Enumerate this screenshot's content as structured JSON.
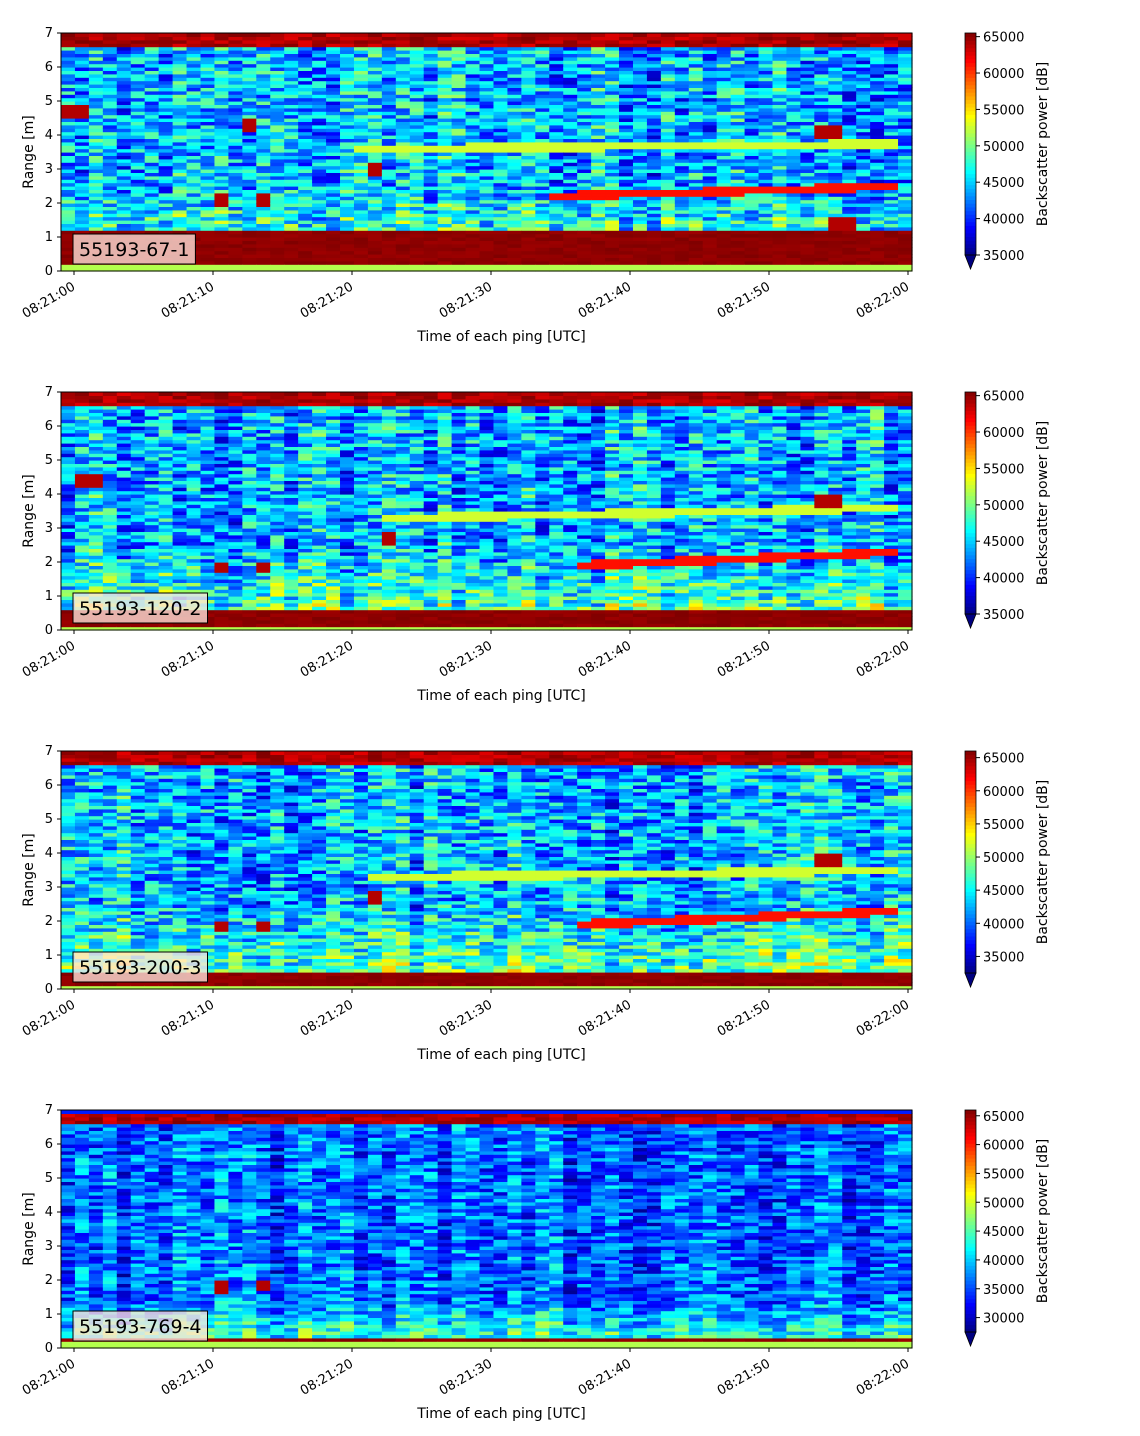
{
  "chart_data": [
    {
      "type": "heatmap",
      "label": "55193-67-1",
      "xlabel": "Time of each ping [UTC]",
      "ylabel": "Range [m]",
      "x_ticks": [
        "08:21:00",
        "08:21:10",
        "08:21:20",
        "08:21:30",
        "08:21:40",
        "08:21:50",
        "08:22:00"
      ],
      "xlim": [
        "08:21:00",
        "08:22:00"
      ],
      "y_ticks": [
        0,
        1,
        2,
        3,
        4,
        5,
        6,
        7
      ],
      "ylim": [
        0,
        7
      ],
      "colorbar": {
        "label": "Backscatter power [dB]",
        "ticks": [
          35000,
          40000,
          45000,
          50000,
          55000,
          60000,
          65000
        ],
        "range": [
          35000,
          65500
        ],
        "extend": "min"
      },
      "colormap": "jet",
      "features": {
        "bottom_band": [
          0.2,
          1.2
        ],
        "top_band": [
          6.6,
          7.0
        ],
        "strong_echo_track": {
          "x": [
            "08:21:34",
            "08:21:59"
          ],
          "y": [
            2.2,
            2.5
          ]
        },
        "weak_echo_track": {
          "x": [
            "08:21:21",
            "08:21:59"
          ],
          "y": [
            3.6,
            3.75
          ]
        },
        "echo_spots": [
          {
            "t": "08:21:11",
            "y": 2.1
          },
          {
            "t": "08:21:14",
            "y": 2.1
          },
          {
            "t": "08:21:13",
            "y": 4.3
          },
          {
            "t": "08:21:22",
            "y": 3.0
          },
          {
            "t": "08:21:01",
            "y": 4.7
          },
          {
            "t": "08:21:54",
            "y": 4.1
          },
          {
            "t": "08:21:55",
            "y": 1.4
          }
        ]
      }
    },
    {
      "type": "heatmap",
      "label": "55193-120-2",
      "xlabel": "Time of each ping [UTC]",
      "ylabel": "Range [m]",
      "x_ticks": [
        "08:21:00",
        "08:21:10",
        "08:21:20",
        "08:21:30",
        "08:21:40",
        "08:21:50",
        "08:22:00"
      ],
      "xlim": [
        "08:21:00",
        "08:22:00"
      ],
      "y_ticks": [
        0,
        1,
        2,
        3,
        4,
        5,
        6,
        7
      ],
      "ylim": [
        0,
        7
      ],
      "colorbar": {
        "label": "Backscatter power [dB]",
        "ticks": [
          35000,
          40000,
          45000,
          50000,
          55000,
          60000,
          65000
        ],
        "range": [
          35000,
          65500
        ],
        "extend": "min"
      },
      "colormap": "jet",
      "features": {
        "bottom_band": [
          0.1,
          0.6
        ],
        "top_band": [
          6.6,
          7.0
        ],
        "strong_echo_track": {
          "x": [
            "08:21:36",
            "08:21:59"
          ],
          "y": [
            1.9,
            2.3
          ]
        },
        "weak_echo_track": {
          "x": [
            "08:21:23",
            "08:21:59"
          ],
          "y": [
            3.3,
            3.6
          ]
        },
        "echo_spots": [
          {
            "t": "08:21:02",
            "y": 4.4
          },
          {
            "t": "08:21:11",
            "y": 1.85
          },
          {
            "t": "08:21:14",
            "y": 1.85
          },
          {
            "t": "08:21:23",
            "y": 2.7
          },
          {
            "t": "08:21:54",
            "y": 3.8
          }
        ]
      }
    },
    {
      "type": "heatmap",
      "label": "55193-200-3",
      "xlabel": "Time of each ping [UTC]",
      "ylabel": "Range [m]",
      "x_ticks": [
        "08:21:00",
        "08:21:10",
        "08:21:20",
        "08:21:30",
        "08:21:40",
        "08:21:50",
        "08:22:00"
      ],
      "xlim": [
        "08:21:00",
        "08:22:00"
      ],
      "y_ticks": [
        0,
        1,
        2,
        3,
        4,
        5,
        6,
        7
      ],
      "ylim": [
        0,
        7
      ],
      "colorbar": {
        "label": "Backscatter power [dB]",
        "ticks": [
          35000,
          40000,
          45000,
          50000,
          55000,
          60000,
          65000
        ],
        "range": [
          32500,
          66000
        ],
        "extend": "min"
      },
      "colormap": "jet",
      "features": {
        "bottom_band": [
          0.1,
          0.5
        ],
        "top_band": [
          6.6,
          7.0
        ],
        "strong_echo_track": {
          "x": [
            "08:21:36",
            "08:21:59"
          ],
          "y": [
            1.9,
            2.3
          ]
        },
        "weak_echo_track": {
          "x": [
            "08:21:22",
            "08:21:59"
          ],
          "y": [
            3.3,
            3.5
          ]
        },
        "echo_spots": [
          {
            "t": "08:21:11",
            "y": 1.85
          },
          {
            "t": "08:21:14",
            "y": 1.85
          },
          {
            "t": "08:21:22",
            "y": 2.7
          },
          {
            "t": "08:21:54",
            "y": 3.8
          }
        ]
      }
    },
    {
      "type": "heatmap",
      "label": "55193-769-4",
      "xlabel": "Time of each ping [UTC]",
      "ylabel": "Range [m]",
      "x_ticks": [
        "08:21:00",
        "08:21:10",
        "08:21:20",
        "08:21:30",
        "08:21:40",
        "08:21:50",
        "08:22:00"
      ],
      "xlim": [
        "08:21:00",
        "08:22:00"
      ],
      "y_ticks": [
        0,
        1,
        2,
        3,
        4,
        5,
        6,
        7
      ],
      "ylim": [
        0,
        7
      ],
      "colorbar": {
        "label": "Backscatter power [dB]",
        "ticks": [
          30000,
          35000,
          40000,
          45000,
          50000,
          55000,
          60000,
          65000
        ],
        "range": [
          27500,
          66000
        ],
        "extend": "min"
      },
      "colormap": "jet",
      "features": {
        "bottom_band": [
          0.2,
          0.35
        ],
        "top_band": [
          6.6,
          6.9
        ],
        "strong_echo_track": null,
        "weak_echo_track": null,
        "echo_spots": [
          {
            "t": "08:21:14",
            "y": 1.85
          },
          {
            "t": "08:21:11",
            "y": 1.8
          }
        ]
      }
    }
  ]
}
